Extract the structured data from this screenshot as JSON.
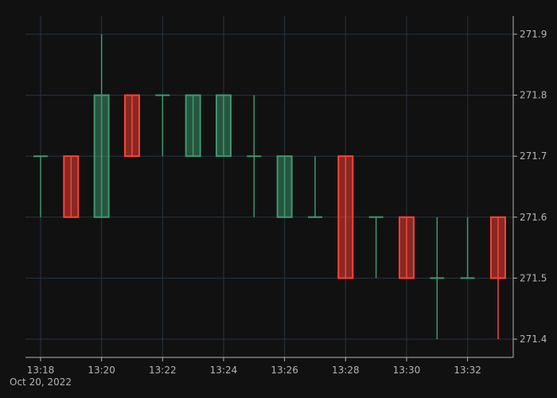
{
  "chart_data": {
    "type": "candlestick",
    "date_label": "Oct 20, 2022",
    "x_tick_labels": [
      "13:18",
      "13:20",
      "13:22",
      "13:24",
      "13:26",
      "13:28",
      "13:30",
      "13:32"
    ],
    "y_tick_labels": [
      "271.4",
      "271.5",
      "271.6",
      "271.7",
      "271.8",
      "271.9"
    ],
    "ylim": [
      271.37,
      271.93
    ],
    "y_axis_side": "right",
    "grid": true,
    "colors": {
      "up": "#3d9970",
      "down": "#ff4136",
      "grid": "#283442",
      "axis": "#b4b4b4",
      "background": "#111111"
    },
    "candles": [
      {
        "time": "13:18",
        "open": 271.7,
        "high": 271.7,
        "low": 271.6,
        "close": 271.7
      },
      {
        "time": "13:19",
        "open": 271.7,
        "high": 271.7,
        "low": 271.6,
        "close": 271.6
      },
      {
        "time": "13:20",
        "open": 271.6,
        "high": 271.9,
        "low": 271.6,
        "close": 271.8
      },
      {
        "time": "13:21",
        "open": 271.8,
        "high": 271.8,
        "low": 271.7,
        "close": 271.7
      },
      {
        "time": "13:22",
        "open": 271.8,
        "high": 271.8,
        "low": 271.7,
        "close": 271.8
      },
      {
        "time": "13:23",
        "open": 271.7,
        "high": 271.8,
        "low": 271.7,
        "close": 271.8
      },
      {
        "time": "13:24",
        "open": 271.7,
        "high": 271.8,
        "low": 271.7,
        "close": 271.8
      },
      {
        "time": "13:25",
        "open": 271.7,
        "high": 271.8,
        "low": 271.6,
        "close": 271.7
      },
      {
        "time": "13:26",
        "open": 271.6,
        "high": 271.7,
        "low": 271.6,
        "close": 271.7
      },
      {
        "time": "13:27",
        "open": 271.6,
        "high": 271.7,
        "low": 271.6,
        "close": 271.6
      },
      {
        "time": "13:28",
        "open": 271.7,
        "high": 271.7,
        "low": 271.5,
        "close": 271.5
      },
      {
        "time": "13:29",
        "open": 271.6,
        "high": 271.6,
        "low": 271.5,
        "close": 271.6
      },
      {
        "time": "13:30",
        "open": 271.6,
        "high": 271.6,
        "low": 271.5,
        "close": 271.5
      },
      {
        "time": "13:31",
        "open": 271.5,
        "high": 271.6,
        "low": 271.4,
        "close": 271.5
      },
      {
        "time": "13:32",
        "open": 271.5,
        "high": 271.6,
        "low": 271.5,
        "close": 271.5
      },
      {
        "time": "13:33",
        "open": 271.6,
        "high": 271.6,
        "low": 271.4,
        "close": 271.5
      }
    ]
  }
}
